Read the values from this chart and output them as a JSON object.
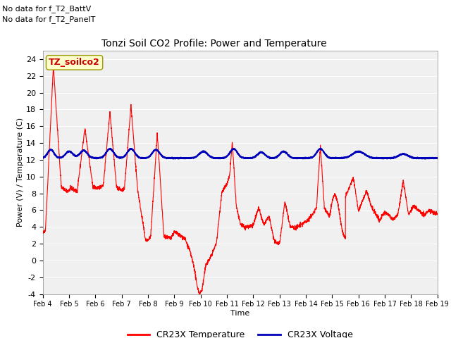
{
  "title": "Tonzi Soil CO2 Profile: Power and Temperature",
  "xlabel": "Time",
  "ylabel": "Power (V) / Temperature (C)",
  "annotation1": "No data for f_T2_BattV",
  "annotation2": "No data for f_T2_PanelT",
  "legend_box_label": "TZ_soilco2",
  "legend_temp": "CR23X Temperature",
  "legend_volt": "CR23X Voltage",
  "ylim": [
    -4,
    25
  ],
  "yticks": [
    -4,
    -2,
    0,
    2,
    4,
    6,
    8,
    10,
    12,
    14,
    16,
    18,
    20,
    22,
    24
  ],
  "xtick_labels": [
    "Feb 4",
    "Feb 5",
    "Feb 6",
    "Feb 7",
    "Feb 8",
    "Feb 9",
    "Feb 10",
    "Feb 11",
    "Feb 12",
    "Feb 13",
    "Feb 14",
    "Feb 15",
    "Feb 16",
    "Feb 17",
    "Feb 18",
    "Feb 19"
  ],
  "temp_color": "#ff0000",
  "volt_color": "#0000bb",
  "bg_color": "#ffffff",
  "plot_bg_color": "#f0f0f0",
  "grid_color": "#cccccc",
  "title_fontsize": 10,
  "label_fontsize": 8,
  "tick_fontsize": 8
}
